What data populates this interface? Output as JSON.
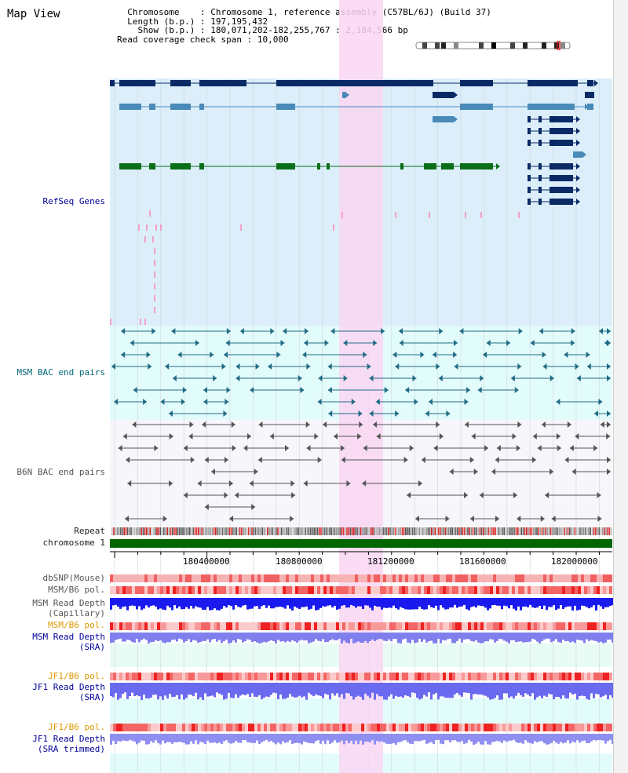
{
  "title": "Map View",
  "info": {
    "chromosome_label": "Chromosome",
    "chromosome_value": "Chromosome 1, reference assembly (C57BL/6J) (Build 37)",
    "length_label": "Length (b.p.)",
    "length_value": "197,195,432",
    "show_label": "Show (b.p.)",
    "show_value": "180,071,202-182,255,767 : 2,184,566 bp",
    "coverage_label": "Read coverage check span",
    "coverage_value": "10,000"
  },
  "tracks": {
    "refseq": "RefSeq Genes",
    "msm_bac": "MSM BAC end pairs",
    "b6n_bac": "B6N BAC end pairs",
    "repeat": "Repeat",
    "chromosome": "chromosome 1",
    "dbsnp": "dbSNP(Mouse)",
    "msm_b6_pol_1": "MSM/B6 pol.",
    "msm_read_depth_cap_1": "MSM Read Depth",
    "msm_read_depth_cap_2": "(Capillary)",
    "msm_b6_pol_2": "MSM/B6 pol.",
    "msm_read_depth_sra_1": "MSM Read Depth",
    "msm_read_depth_sra_2": "(SRA)",
    "jf1_b6_pol_1": "JF1/B6 pol.",
    "jf1_read_depth_sra_1": "JF1 Read Depth",
    "jf1_read_depth_sra_2": "(SRA)",
    "jf1_b6_pol_2": "JF1/B6 pol.",
    "jf1_read_depth_trim_1": "JF1 Read Depth",
    "jf1_read_depth_trim_2": "(SRA trimmed)"
  },
  "ruler_ticks": [
    "180400000",
    "180800000",
    "181200000",
    "181600000",
    "182000000"
  ],
  "colors": {
    "refseq_bg": "#dbeefa",
    "msm_bg": "#e2fbfb",
    "b6n_bg": "#f6f6fb",
    "highlight": "#f9d6f2",
    "chromosome_bar": "#006600",
    "gene_dark": "#0a2a66",
    "gene_mid": "#4a8ab8",
    "gene_green": "#0a6e18",
    "bac_msm": "#226b86",
    "bac_b6n": "#555555"
  }
}
